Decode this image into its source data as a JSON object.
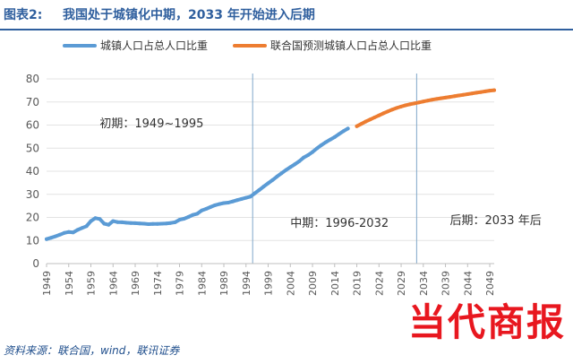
{
  "header": {
    "figure_label": "图表2:",
    "title": "我国处于城镇化中期，2033 年开始进入后期"
  },
  "source": "资料来源：联合国，wind，联讯证券",
  "watermark": "当代商报",
  "chart_data": {
    "type": "line",
    "title": "我国处于城镇化中期，2033 年开始进入后期",
    "ylim": [
      0,
      80
    ],
    "yticks": [
      0,
      10,
      20,
      30,
      40,
      50,
      60,
      70,
      80
    ],
    "xlim": [
      1949,
      2050
    ],
    "xticks": [
      1949,
      1954,
      1959,
      1964,
      1969,
      1974,
      1979,
      1984,
      1989,
      1994,
      1999,
      2004,
      2009,
      2014,
      2019,
      2024,
      2029,
      2034,
      2039,
      2044,
      2049
    ],
    "legend_position": "top",
    "series": [
      {
        "name": "城镇人口占总人口比重",
        "color": "#5b9bd5",
        "points": [
          [
            1949,
            10.6
          ],
          [
            1950,
            11.2
          ],
          [
            1951,
            11.8
          ],
          [
            1952,
            12.5
          ],
          [
            1953,
            13.3
          ],
          [
            1954,
            13.7
          ],
          [
            1955,
            13.5
          ],
          [
            1956,
            14.6
          ],
          [
            1957,
            15.4
          ],
          [
            1958,
            16.2
          ],
          [
            1959,
            18.4
          ],
          [
            1960,
            19.7
          ],
          [
            1961,
            19.3
          ],
          [
            1962,
            17.3
          ],
          [
            1963,
            16.8
          ],
          [
            1964,
            18.4
          ],
          [
            1965,
            18.0
          ],
          [
            1966,
            17.9
          ],
          [
            1967,
            17.7
          ],
          [
            1968,
            17.6
          ],
          [
            1969,
            17.5
          ],
          [
            1970,
            17.4
          ],
          [
            1971,
            17.3
          ],
          [
            1972,
            17.1
          ],
          [
            1973,
            17.2
          ],
          [
            1974,
            17.2
          ],
          [
            1975,
            17.3
          ],
          [
            1976,
            17.4
          ],
          [
            1977,
            17.6
          ],
          [
            1978,
            17.9
          ],
          [
            1979,
            19.0
          ],
          [
            1980,
            19.4
          ],
          [
            1981,
            20.2
          ],
          [
            1982,
            21.1
          ],
          [
            1983,
            21.6
          ],
          [
            1984,
            23.0
          ],
          [
            1985,
            23.7
          ],
          [
            1986,
            24.5
          ],
          [
            1987,
            25.3
          ],
          [
            1988,
            25.8
          ],
          [
            1989,
            26.2
          ],
          [
            1990,
            26.4
          ],
          [
            1991,
            26.9
          ],
          [
            1992,
            27.5
          ],
          [
            1993,
            28.0
          ],
          [
            1994,
            28.5
          ],
          [
            1995,
            29.0
          ],
          [
            1996,
            30.5
          ],
          [
            1997,
            31.9
          ],
          [
            1998,
            33.4
          ],
          [
            1999,
            34.8
          ],
          [
            2000,
            36.2
          ],
          [
            2001,
            37.7
          ],
          [
            2002,
            39.1
          ],
          [
            2003,
            40.5
          ],
          [
            2004,
            41.8
          ],
          [
            2005,
            43.0
          ],
          [
            2006,
            44.3
          ],
          [
            2007,
            45.9
          ],
          [
            2008,
            47.0
          ],
          [
            2009,
            48.3
          ],
          [
            2010,
            49.9
          ],
          [
            2011,
            51.3
          ],
          [
            2012,
            52.6
          ],
          [
            2013,
            53.7
          ],
          [
            2014,
            54.8
          ],
          [
            2015,
            56.1
          ],
          [
            2016,
            57.4
          ],
          [
            2017,
            58.5
          ]
        ]
      },
      {
        "name": "联合国预测城镇人口占总人口比重",
        "color": "#ed7d31",
        "points": [
          [
            2019,
            59.5
          ],
          [
            2020,
            60.5
          ],
          [
            2021,
            61.5
          ],
          [
            2022,
            62.4
          ],
          [
            2023,
            63.3
          ],
          [
            2024,
            64.2
          ],
          [
            2025,
            65.1
          ],
          [
            2026,
            65.9
          ],
          [
            2027,
            66.7
          ],
          [
            2028,
            67.4
          ],
          [
            2029,
            68.0
          ],
          [
            2030,
            68.6
          ],
          [
            2031,
            69.0
          ],
          [
            2032,
            69.4
          ],
          [
            2033,
            69.8
          ],
          [
            2034,
            70.2
          ],
          [
            2035,
            70.6
          ],
          [
            2036,
            71.0
          ],
          [
            2037,
            71.3
          ],
          [
            2038,
            71.6
          ],
          [
            2039,
            71.9
          ],
          [
            2040,
            72.2
          ],
          [
            2041,
            72.5
          ],
          [
            2042,
            72.8
          ],
          [
            2043,
            73.1
          ],
          [
            2044,
            73.4
          ],
          [
            2045,
            73.7
          ],
          [
            2046,
            74.0
          ],
          [
            2047,
            74.3
          ],
          [
            2048,
            74.6
          ],
          [
            2049,
            74.9
          ],
          [
            2050,
            75.1
          ]
        ]
      }
    ],
    "vertical_lines": [
      1995.5,
      2032.5
    ],
    "annotations": [
      {
        "text": "初期：1949~1995",
        "x": 1961,
        "y": 59
      },
      {
        "text": "中期：1996-2032",
        "x": 2004,
        "y": 16
      },
      {
        "text": "后期：2033 年后",
        "x": 2040,
        "y": 17
      }
    ]
  }
}
